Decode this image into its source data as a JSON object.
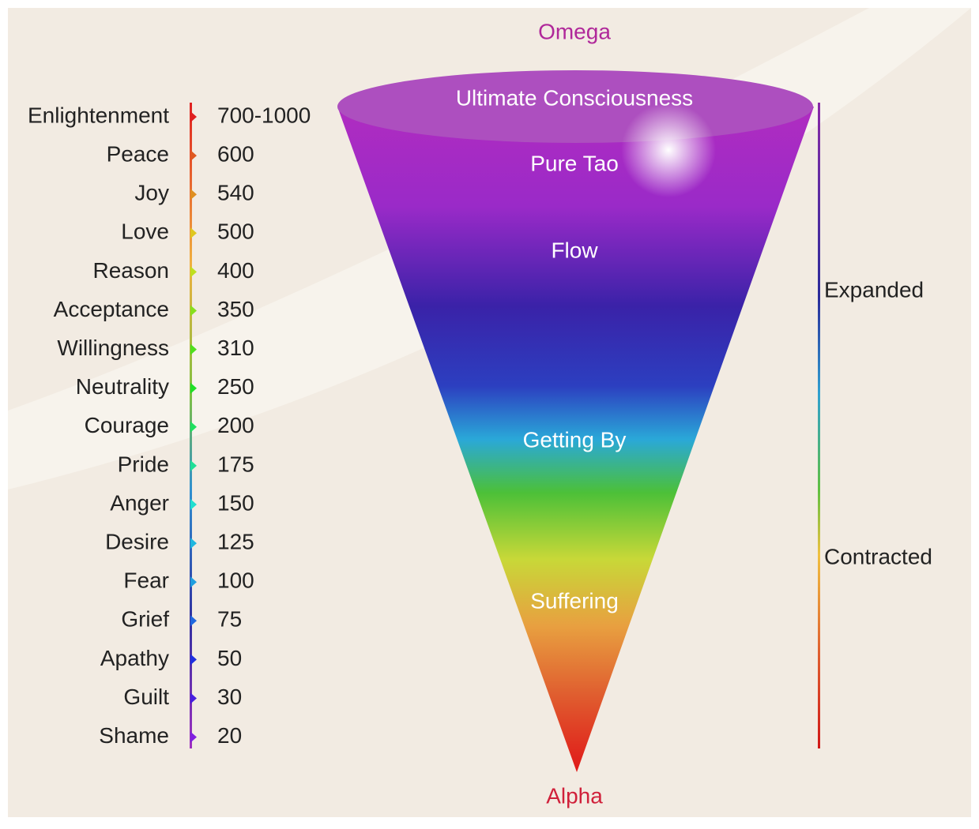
{
  "top_label": "Omega",
  "bottom_label": "Alpha",
  "levels": [
    {
      "name": "Enlightenment",
      "value": "700-1000"
    },
    {
      "name": "Peace",
      "value": 600
    },
    {
      "name": "Joy",
      "value": 540
    },
    {
      "name": "Love",
      "value": 500
    },
    {
      "name": "Reason",
      "value": 400
    },
    {
      "name": "Acceptance",
      "value": 350
    },
    {
      "name": "Willingness",
      "value": 310
    },
    {
      "name": "Neutrality",
      "value": 250
    },
    {
      "name": "Courage",
      "value": 200
    },
    {
      "name": "Pride",
      "value": 175
    },
    {
      "name": "Anger",
      "value": 150
    },
    {
      "name": "Desire",
      "value": 125
    },
    {
      "name": "Fear",
      "value": 100
    },
    {
      "name": "Grief",
      "value": 75
    },
    {
      "name": "Apathy",
      "value": 50
    },
    {
      "name": "Guilt",
      "value": 30
    },
    {
      "name": "Shame",
      "value": 20
    }
  ],
  "cone_labels": [
    "Ultimate Consciousness",
    "Pure Tao",
    "Flow",
    "Getting By",
    "Suffering"
  ],
  "side_labels": [
    "Expanded",
    "Contracted"
  ]
}
